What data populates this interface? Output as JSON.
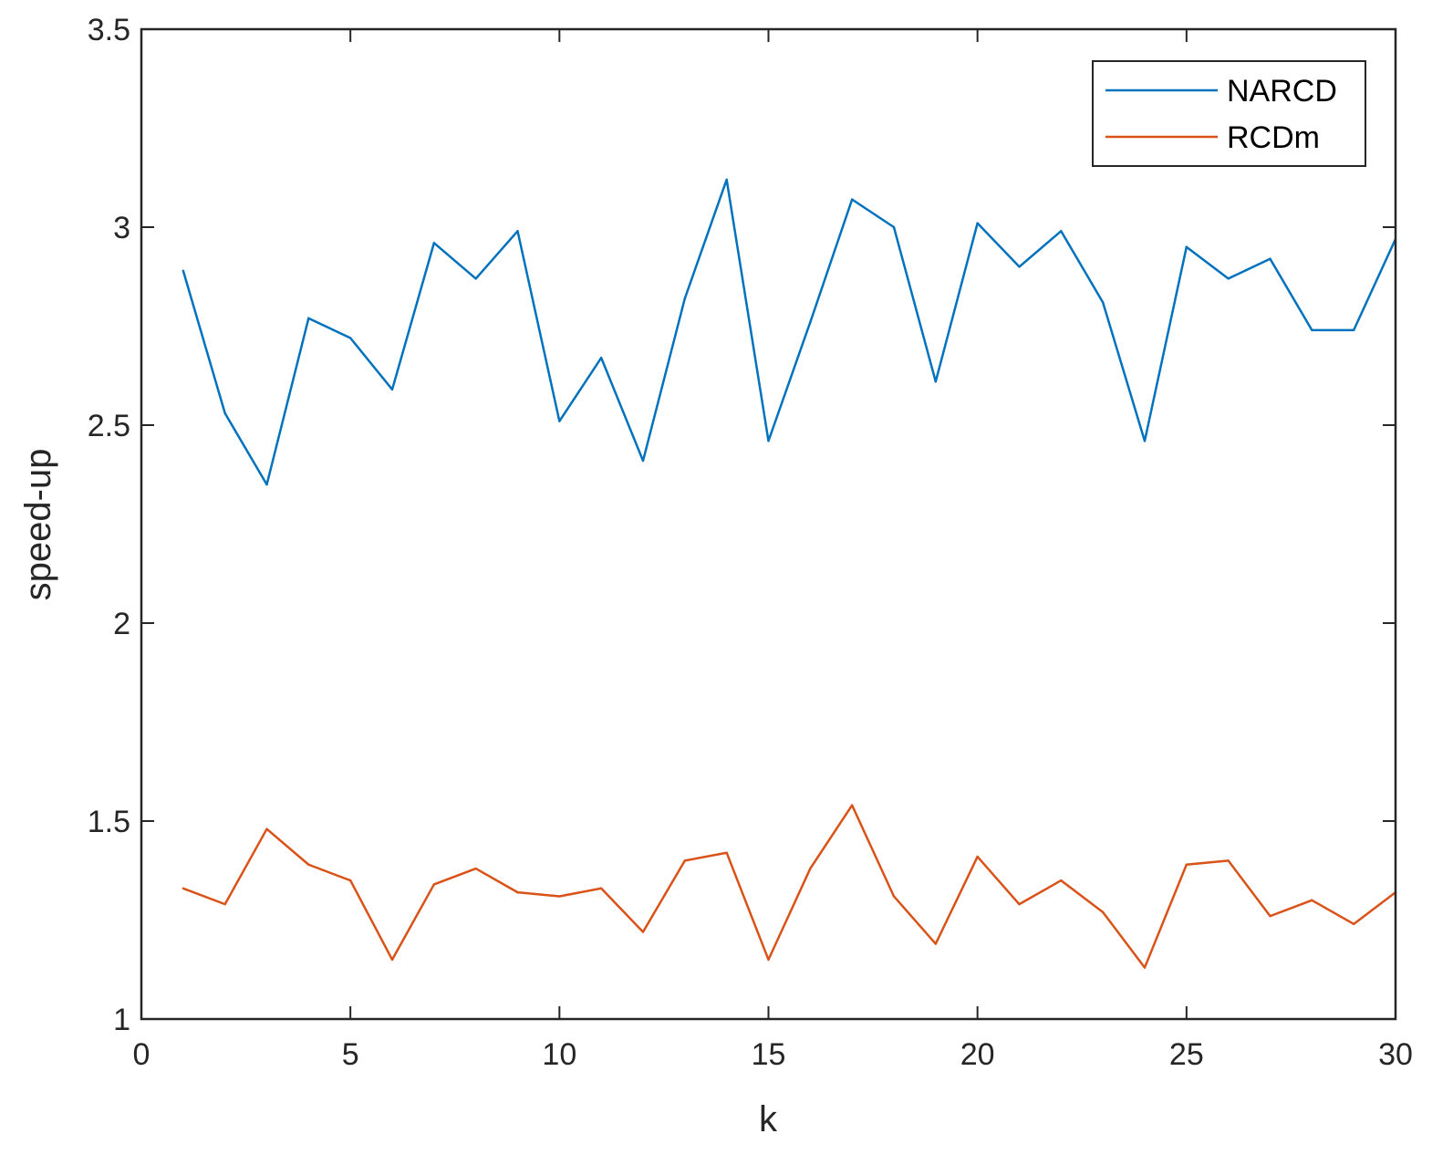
{
  "chart_data": {
    "type": "line",
    "title": "",
    "xlabel": "k",
    "ylabel": "speed-up",
    "xlim": [
      0,
      30
    ],
    "ylim": [
      1,
      3.5
    ],
    "xticks": [
      "0",
      "5",
      "10",
      "15",
      "20",
      "25",
      "30"
    ],
    "yticks": [
      "1",
      "1.5",
      "2",
      "2.5",
      "3",
      "3.5"
    ],
    "grid": false,
    "legend_position": "top-right",
    "x": [
      1,
      2,
      3,
      4,
      5,
      6,
      7,
      8,
      9,
      10,
      11,
      12,
      13,
      14,
      15,
      16,
      17,
      18,
      19,
      20,
      21,
      22,
      23,
      24,
      25,
      26,
      27,
      28,
      29,
      30
    ],
    "series": [
      {
        "name": "NARCD",
        "color": "#0072BD",
        "values": [
          2.89,
          2.53,
          2.35,
          2.77,
          2.72,
          2.59,
          2.96,
          2.87,
          2.99,
          2.51,
          2.67,
          2.41,
          2.82,
          3.12,
          2.46,
          2.76,
          3.07,
          3.0,
          2.61,
          3.01,
          2.9,
          2.99,
          2.81,
          2.46,
          2.95,
          2.87,
          2.92,
          2.74,
          2.74,
          2.97
        ]
      },
      {
        "name": "RCDm",
        "color": "#D95319",
        "values": [
          1.33,
          1.29,
          1.48,
          1.39,
          1.35,
          1.15,
          1.34,
          1.38,
          1.32,
          1.31,
          1.33,
          1.22,
          1.4,
          1.42,
          1.15,
          1.38,
          1.54,
          1.31,
          1.19,
          1.41,
          1.29,
          1.35,
          1.27,
          1.13,
          1.39,
          1.4,
          1.26,
          1.3,
          1.24,
          1.32
        ]
      }
    ]
  }
}
